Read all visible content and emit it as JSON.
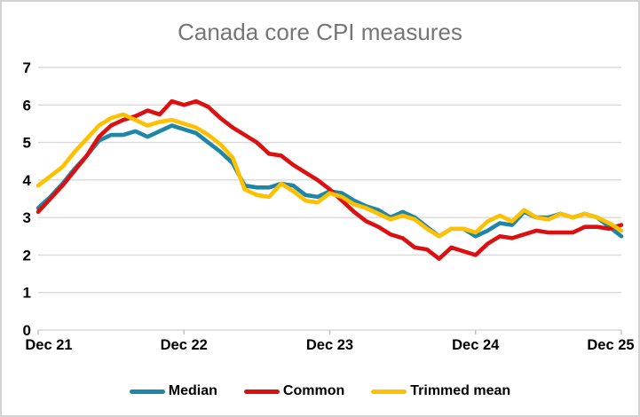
{
  "chart_data": {
    "type": "line",
    "title": "Canada core CPI measures",
    "x_axis": {
      "frequency": "monthly",
      "start": "Dec 2021",
      "end": "Dec 2025",
      "tick_labels": [
        "Dec 21",
        "Dec 22",
        "Dec 23",
        "Dec 24",
        "Dec 25"
      ],
      "tick_month_indices": [
        0,
        12,
        24,
        36,
        48
      ]
    },
    "y_axis": {
      "ticks": [
        0,
        1,
        2,
        3,
        4,
        5,
        6,
        7
      ],
      "ylim": [
        0,
        7
      ],
      "grid": true
    },
    "legend_position": "bottom",
    "series": [
      {
        "name": "Median",
        "color": "#1F86A8",
        "values": [
          3.25,
          3.55,
          3.9,
          4.3,
          4.65,
          5.05,
          5.2,
          5.2,
          5.3,
          5.15,
          5.3,
          5.45,
          5.35,
          5.25,
          5.0,
          4.75,
          4.45,
          3.85,
          3.8,
          3.8,
          3.9,
          3.85,
          3.6,
          3.55,
          3.7,
          3.65,
          3.45,
          3.3,
          3.2,
          3.0,
          3.15,
          3.0,
          2.75,
          2.5,
          2.7,
          2.7,
          2.5,
          2.65,
          2.85,
          2.8,
          3.15,
          3.0,
          3.0,
          3.1,
          3.0,
          3.1,
          3.0,
          2.75,
          2.5
        ]
      },
      {
        "name": "Common",
        "color": "#DC1010",
        "values": [
          3.15,
          3.5,
          3.85,
          4.25,
          4.65,
          5.15,
          5.45,
          5.6,
          5.7,
          5.85,
          5.75,
          6.1,
          6.0,
          6.1,
          5.95,
          5.65,
          5.4,
          5.2,
          5.0,
          4.7,
          4.65,
          4.4,
          4.2,
          4.0,
          3.75,
          3.45,
          3.15,
          2.9,
          2.75,
          2.55,
          2.45,
          2.2,
          2.15,
          1.9,
          2.2,
          2.1,
          2.0,
          2.3,
          2.5,
          2.45,
          2.55,
          2.65,
          2.6,
          2.6,
          2.6,
          2.75,
          2.75,
          2.7,
          2.8
        ]
      },
      {
        "name": "Trimmed mean",
        "color": "#FFC000",
        "values": [
          3.85,
          4.1,
          4.35,
          4.75,
          5.1,
          5.45,
          5.65,
          5.75,
          5.6,
          5.45,
          5.55,
          5.6,
          5.5,
          5.4,
          5.2,
          4.95,
          4.6,
          3.75,
          3.6,
          3.55,
          3.9,
          3.7,
          3.45,
          3.4,
          3.65,
          3.55,
          3.35,
          3.25,
          3.1,
          2.95,
          3.05,
          2.95,
          2.7,
          2.5,
          2.7,
          2.7,
          2.6,
          2.9,
          3.05,
          2.9,
          3.2,
          3.0,
          2.95,
          3.1,
          3.0,
          3.1,
          3.0,
          2.85,
          2.65
        ]
      }
    ],
    "colors": {
      "gridline": "#D9D9D9",
      "axis_line": "#D9D9D9",
      "tick_mark": "#BFBFBF",
      "axis_text": "#000000",
      "title_text": "#757575",
      "frame_border": "#D2D2D2",
      "background": "#FFFFFF"
    }
  }
}
